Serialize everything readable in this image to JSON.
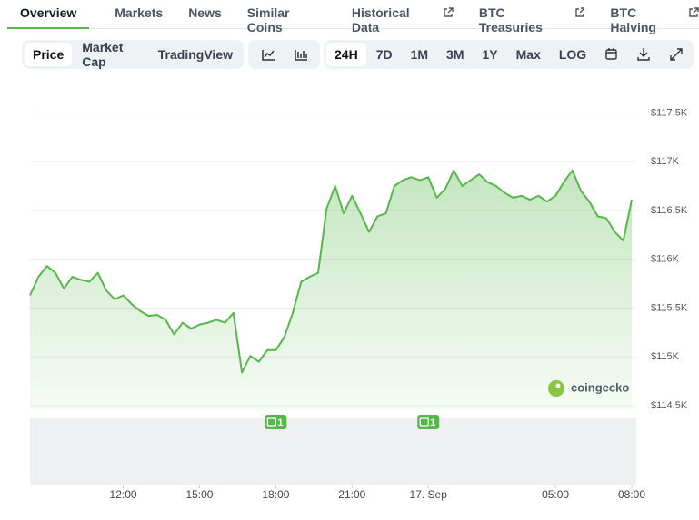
{
  "tabs": [
    {
      "label": "Overview",
      "active": true
    },
    {
      "label": "Markets"
    },
    {
      "label": "News"
    },
    {
      "label": "Similar Coins"
    },
    {
      "label": "Historical Data",
      "external": true
    },
    {
      "label": "BTC Treasuries",
      "external": true
    },
    {
      "label": "BTC Halving",
      "external": true
    }
  ],
  "toolbar": {
    "metrics": [
      {
        "label": "Price",
        "active": true
      },
      {
        "label": "Market Cap"
      },
      {
        "label": "TradingView"
      }
    ],
    "ranges": [
      {
        "label": "24H",
        "active": true
      },
      {
        "label": "7D"
      },
      {
        "label": "1M"
      },
      {
        "label": "3M"
      },
      {
        "label": "1Y"
      },
      {
        "label": "Max"
      },
      {
        "label": "LOG"
      }
    ]
  },
  "watermark": "coingecko",
  "chart_data": {
    "type": "line",
    "color": "#57b74a",
    "values": [
      115630,
      115820,
      115930,
      115860,
      115700,
      115820,
      115790,
      115770,
      115860,
      115680,
      115590,
      115630,
      115540,
      115470,
      115420,
      115430,
      115380,
      115230,
      115350,
      115290,
      115330,
      115350,
      115380,
      115350,
      115450,
      114840,
      115010,
      114950,
      115070,
      115070,
      115200,
      115450,
      115770,
      115820,
      115860,
      116520,
      116750,
      116470,
      116650,
      116470,
      116280,
      116440,
      116470,
      116750,
      116810,
      116840,
      116810,
      116840,
      116630,
      116720,
      116910,
      116750,
      116810,
      116870,
      116790,
      116750,
      116680,
      116630,
      116650,
      116610,
      116650,
      116590,
      116650,
      116790,
      116910,
      116700,
      116590,
      116440,
      116420,
      116280,
      116190,
      116610
    ],
    "xlim": [
      0,
      71
    ],
    "xticks": [
      {
        "value": 11,
        "label": "12:00"
      },
      {
        "value": 20,
        "label": "15:00"
      },
      {
        "value": 29,
        "label": "18:00"
      },
      {
        "value": 38,
        "label": "21:00"
      },
      {
        "value": 47,
        "label": "17. Sep"
      },
      {
        "value": 62,
        "label": "05:00"
      },
      {
        "value": 71,
        "label": "08:00"
      }
    ],
    "ylim": [
      114500,
      117680
    ],
    "yticks": [
      {
        "value": 114500,
        "label": "$114.5K"
      },
      {
        "value": 115000,
        "label": "$115K"
      },
      {
        "value": 115500,
        "label": "$115.5K"
      },
      {
        "value": 116000,
        "label": "$116K"
      },
      {
        "value": 116500,
        "label": "$116.5K"
      },
      {
        "value": 117000,
        "label": "$117K"
      },
      {
        "value": 117500,
        "label": "$117.5K"
      }
    ],
    "grid": true,
    "annotations": [
      {
        "text": "1",
        "x": 29
      },
      {
        "text": "1",
        "x": 47
      }
    ]
  }
}
